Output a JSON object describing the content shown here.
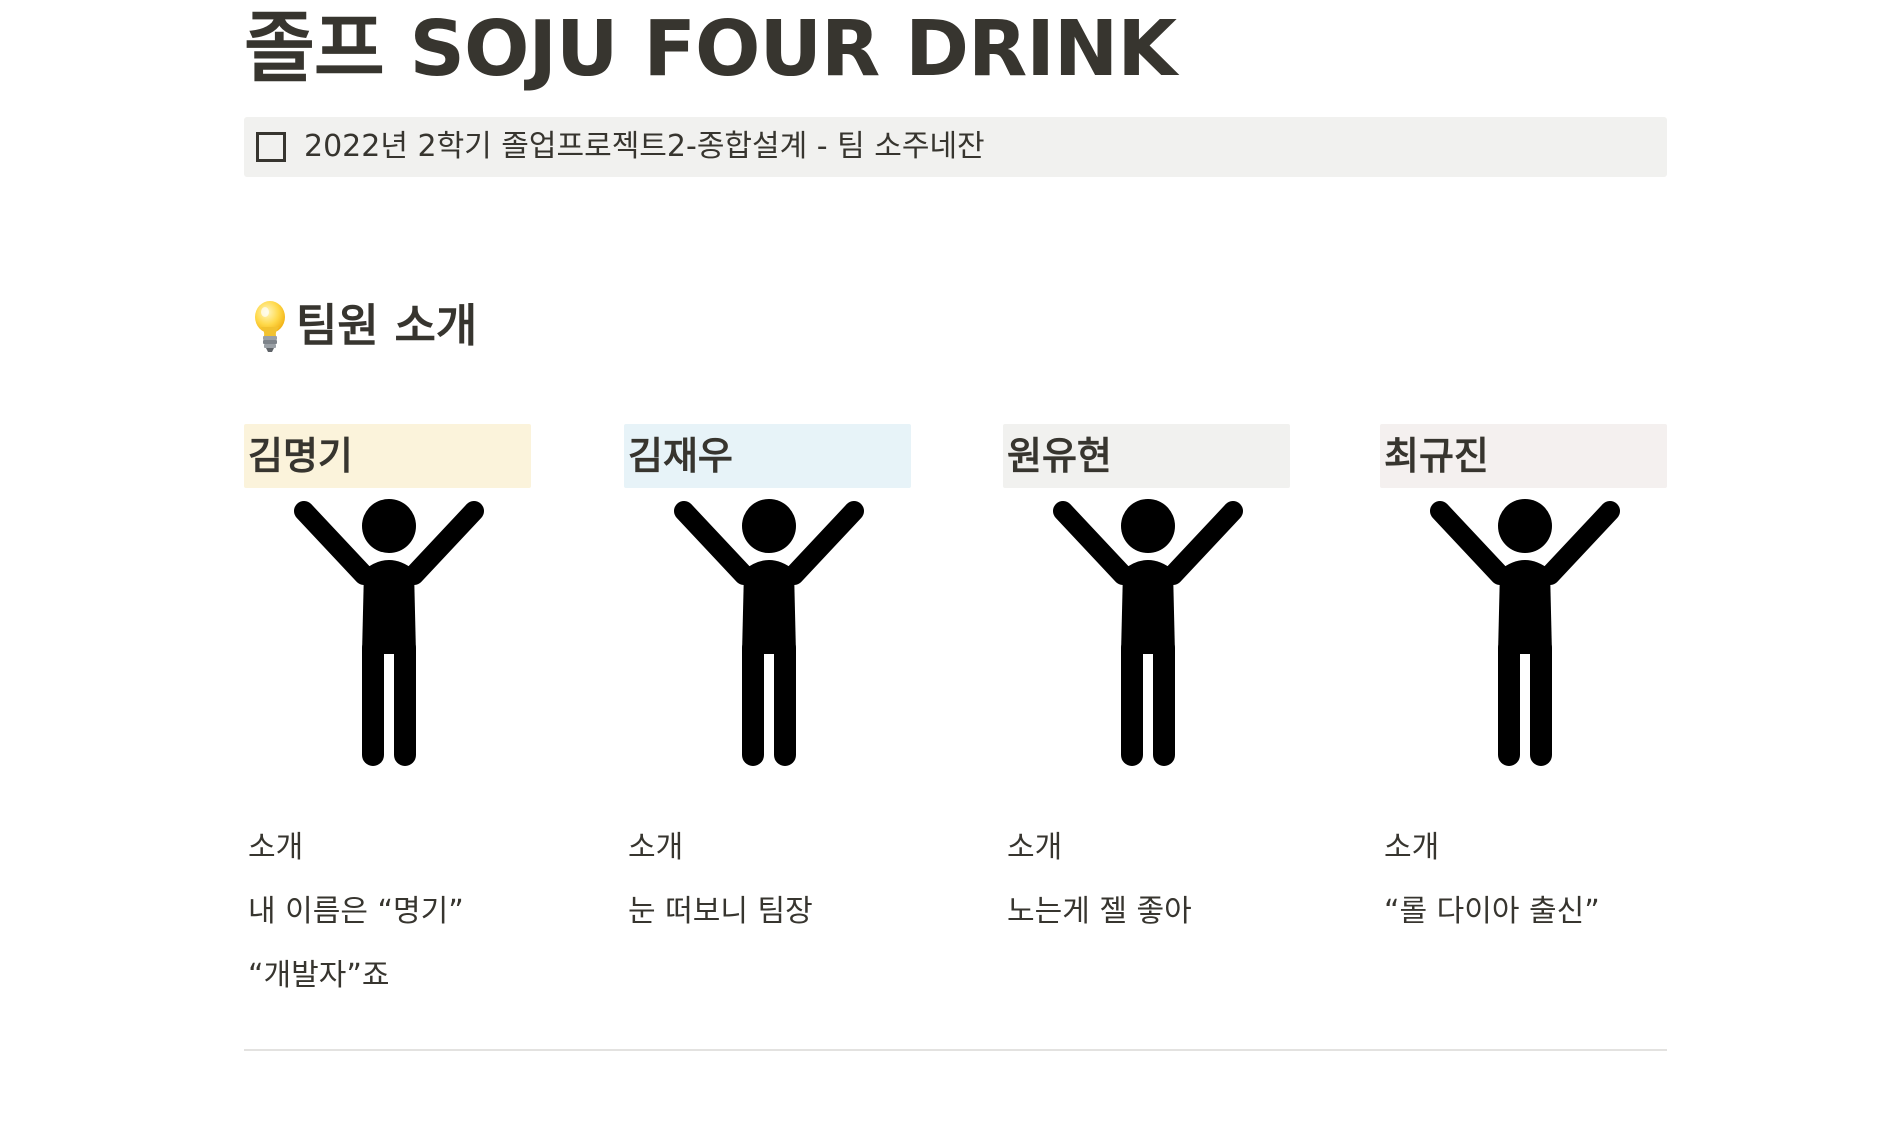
{
  "page": {
    "title": "졸프 SOJU FOUR DRINK"
  },
  "callout": {
    "text": "2022년 2학기 졸업프로젝트2-종합설계 - 팀 소주네잔"
  },
  "section": {
    "icon": "lightbulb-icon",
    "heading": "팀원 소개"
  },
  "members": [
    {
      "name": "김명기",
      "name_bg": "#fbf3db",
      "icon": "person-arms-raised-icon",
      "intro_label": "소개",
      "intro_lines": [
        "내 이름은 “명기”",
        "“개발자”죠"
      ]
    },
    {
      "name": "김재우",
      "name_bg": "#e7f3f8",
      "icon": "person-arms-raised-icon",
      "intro_label": "소개",
      "intro_lines": [
        "눈 떠보니 팀장"
      ]
    },
    {
      "name": "원유현",
      "name_bg": "#f1f1ef",
      "icon": "person-arms-raised-icon",
      "intro_label": "소개",
      "intro_lines": [
        "노는게 젤 좋아"
      ]
    },
    {
      "name": "최규진",
      "name_bg": "#f4f0ef",
      "icon": "person-arms-raised-icon",
      "intro_label": "소개",
      "intro_lines": [
        "“롤 다이아 출신”"
      ]
    }
  ]
}
